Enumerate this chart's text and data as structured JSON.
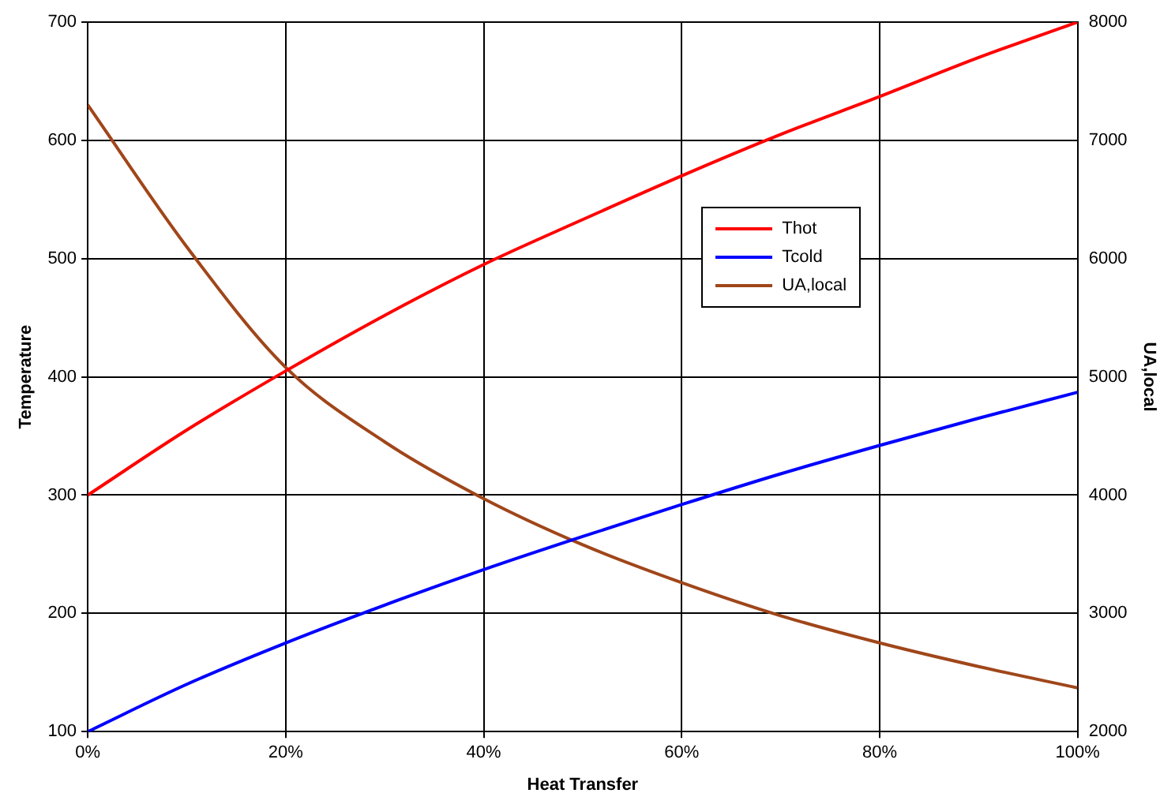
{
  "chart_data": {
    "type": "line",
    "xlabel": "Heat Transfer",
    "ylabel": "Temperature",
    "y2label": "UA,local",
    "x": [
      0,
      10,
      20,
      30,
      40,
      50,
      60,
      70,
      80,
      90,
      100
    ],
    "xlim": [
      0,
      100
    ],
    "xticks": [
      {
        "value": 0,
        "label": "0%"
      },
      {
        "value": 20,
        "label": "20%"
      },
      {
        "value": 40,
        "label": "40%"
      },
      {
        "value": 60,
        "label": "60%"
      },
      {
        "value": 80,
        "label": "80%"
      },
      {
        "value": 100,
        "label": "100%"
      }
    ],
    "ylim": [
      100,
      700
    ],
    "yticks": [
      100,
      200,
      300,
      400,
      500,
      600,
      700
    ],
    "y2lim": [
      2000,
      8000
    ],
    "y2ticks": [
      2000,
      3000,
      4000,
      5000,
      6000,
      7000,
      8000
    ],
    "series": [
      {
        "name": "Thot",
        "color": "#ff0000",
        "values": [
          300,
          355,
          405,
          452,
          495,
          533,
          570,
          605,
          637,
          670,
          700
        ]
      },
      {
        "name": "Tcold",
        "color": "#0000ff",
        "values": [
          100,
          140,
          175,
          207,
          237,
          265,
          292,
          318,
          342,
          365,
          387
        ]
      },
      {
        "name": "UA,local",
        "color": "#a0461a",
        "axis": "y2",
        "values": [
          7300,
          6100,
          5080,
          4450,
          3970,
          3580,
          3260,
          2980,
          2750,
          2550,
          2370
        ]
      }
    ],
    "grid": true,
    "legend": "right",
    "marker": "none",
    "line_style": "solid"
  }
}
